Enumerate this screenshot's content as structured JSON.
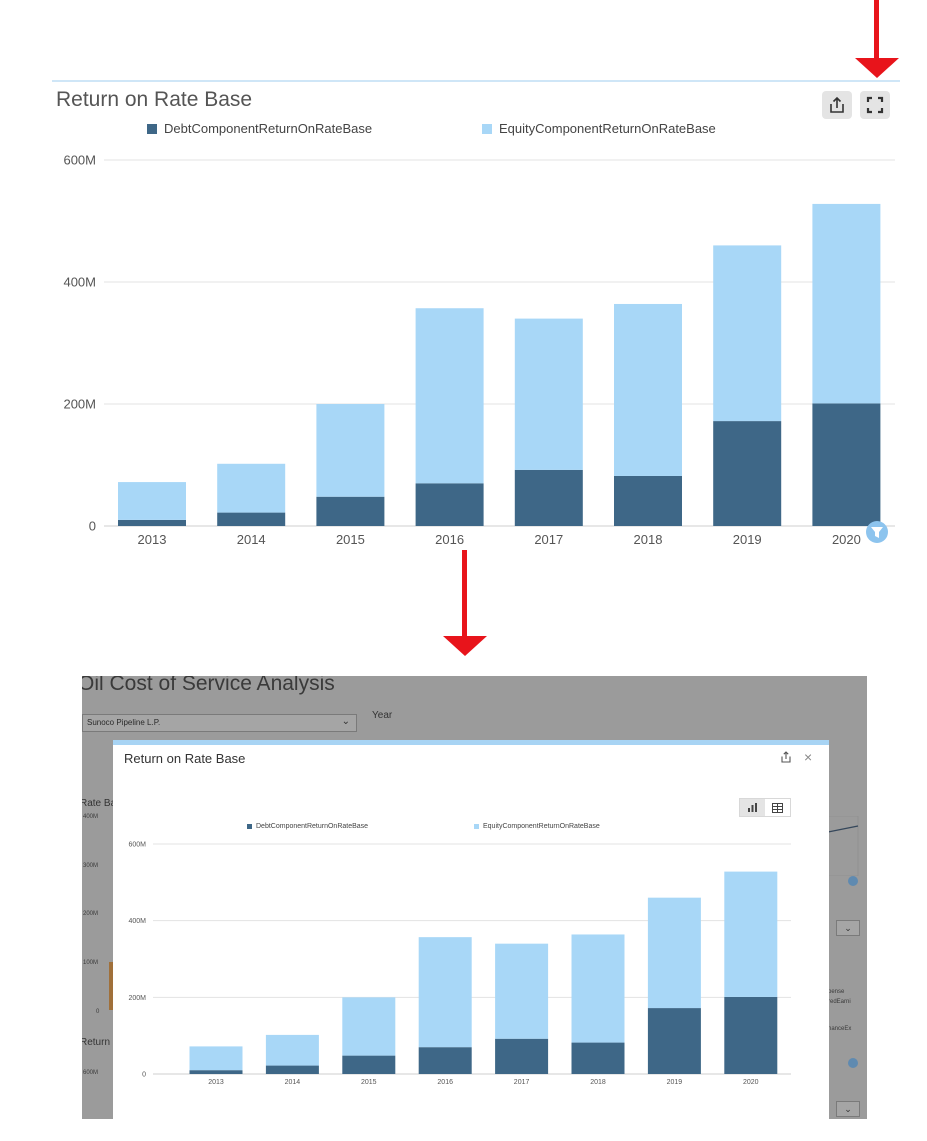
{
  "top_widget": {
    "title": "Return on Rate Base",
    "share_icon": "share-icon",
    "fullscreen_icon": "fullscreen-icon",
    "filter_icon": "filter-icon"
  },
  "modal": {
    "title": "Return on Rate Base",
    "share_icon": "share-icon",
    "close_label": "×",
    "chart_view_icon": "bar-chart-icon",
    "table_view_icon": "table-icon"
  },
  "background_app": {
    "page_title": "Oil Cost of Service Analysis",
    "company_select_value": "Sunoco Pipeline L.P.",
    "year_label": "Year",
    "rate_base_label": "Rate Ba",
    "return_label": "Return",
    "left_ticks": [
      "400M",
      "300M",
      "200M",
      "100M",
      "0"
    ],
    "return_tick": "600M",
    "right_fragments": [
      "pense",
      "redEarni",
      "nanceEx"
    ]
  },
  "chart_data": [
    {
      "type": "bar",
      "stacked": true,
      "categories": [
        "2013",
        "2014",
        "2015",
        "2016",
        "2017",
        "2018",
        "2019",
        "2020"
      ],
      "series": [
        {
          "name": "DebtComponentReturnOnRateBase",
          "color": "#3e6787",
          "values": [
            10,
            22,
            48,
            70,
            92,
            82,
            172,
            201
          ]
        },
        {
          "name": "EquityComponentReturnOnRateBase",
          "color": "#a8d7f7",
          "values": [
            62,
            80,
            152,
            287,
            248,
            282,
            288,
            327
          ]
        }
      ],
      "title": "Return on Rate Base",
      "ylim": [
        0,
        600
      ],
      "yticks": [
        "0",
        "200M",
        "400M",
        "600M"
      ],
      "grid": true,
      "legend": "top"
    },
    {
      "type": "bar",
      "stacked": true,
      "categories": [
        "2013",
        "2014",
        "2015",
        "2016",
        "2017",
        "2018",
        "2019",
        "2020"
      ],
      "series": [
        {
          "name": "DebtComponentReturnOnRateBase",
          "color": "#3e6787",
          "values": [
            10,
            22,
            48,
            70,
            92,
            82,
            172,
            201
          ]
        },
        {
          "name": "EquityComponentReturnOnRateBase",
          "color": "#a8d7f7",
          "values": [
            62,
            80,
            152,
            287,
            248,
            282,
            288,
            327
          ]
        }
      ],
      "title": "Return on Rate Base",
      "ylim": [
        0,
        600
      ],
      "yticks": [
        "0",
        "200M",
        "400M",
        "600M"
      ],
      "grid": true,
      "legend": "top"
    }
  ]
}
